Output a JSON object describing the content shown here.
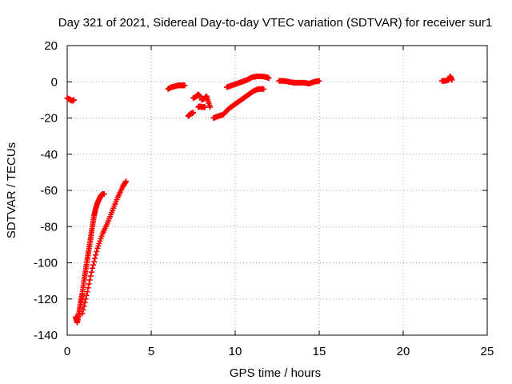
{
  "chart_data": {
    "type": "scatter",
    "title": "Day 321 of 2021, Sidereal Day-to-day VTEC variation (SDTVAR) for receiver sur1",
    "xlabel": "GPS time / hours",
    "ylabel": "SDTVAR / TECUs",
    "xlim": [
      0,
      25
    ],
    "ylim": [
      -140,
      20
    ],
    "xticks": [
      0,
      5,
      10,
      15,
      20,
      25
    ],
    "yticks": [
      -140,
      -120,
      -100,
      -80,
      -60,
      -40,
      -20,
      0,
      20
    ],
    "grid": true,
    "marker": "+",
    "color": "#ff0000",
    "segments": [
      {
        "x": [
          0.0,
          0.1,
          0.2,
          0.3,
          0.4
        ],
        "y": [
          -9,
          -9.5,
          -10,
          -10.5,
          -10
        ]
      },
      {
        "x": [
          0.5,
          0.6,
          0.7,
          0.8,
          0.9,
          1.0,
          1.1,
          1.2,
          1.3,
          1.4,
          1.5,
          1.6,
          1.7,
          1.8,
          1.9,
          2.0,
          2.1,
          2.2
        ],
        "y": [
          -130,
          -133,
          -128,
          -122,
          -117,
          -110,
          -104,
          -98,
          -92,
          -86,
          -80,
          -74,
          -70,
          -67,
          -65,
          -63,
          -62,
          -62
        ]
      },
      {
        "x": [
          0.9,
          1.2,
          1.5,
          1.8,
          2.1,
          2.4,
          2.7,
          3.0,
          3.3,
          3.5
        ],
        "y": [
          -128,
          -116,
          -103,
          -92,
          -84,
          -78,
          -71,
          -64,
          -58,
          -55
        ]
      },
      {
        "x": [
          6.0,
          6.2,
          6.4,
          6.6,
          6.8,
          7.0
        ],
        "y": [
          -4,
          -3,
          -2.5,
          -2,
          -2,
          -2
        ]
      },
      {
        "x": [
          7.2,
          7.3,
          7.4,
          7.5
        ],
        "y": [
          -19,
          -18,
          -17.5,
          -17
        ]
      },
      {
        "x": [
          7.5,
          7.7,
          7.8,
          7.9
        ],
        "y": [
          -9,
          -8,
          -7,
          -8
        ]
      },
      {
        "x": [
          7.8,
          7.9,
          8.0,
          8.1,
          8.2
        ],
        "y": [
          -14,
          -13.5,
          -14,
          -14,
          -14
        ]
      },
      {
        "x": [
          8.0,
          8.2,
          8.3,
          8.5
        ],
        "y": [
          -10,
          -9,
          -8,
          -14
        ]
      },
      {
        "x": [
          8.7,
          9.0,
          9.3,
          9.6,
          9.9,
          10.2,
          10.5,
          10.8,
          11.1,
          11.4,
          11.7
        ],
        "y": [
          -20,
          -19,
          -18,
          -15,
          -13,
          -11,
          -9,
          -7,
          -5,
          -4,
          -4
        ]
      },
      {
        "x": [
          9.5,
          9.8,
          10.1,
          10.4,
          10.7,
          11.0,
          11.3,
          11.6,
          11.9,
          12.0
        ],
        "y": [
          -3,
          -2,
          -1,
          0,
          1,
          2.5,
          3,
          3,
          2.5,
          2
        ]
      },
      {
        "x": [
          12.6,
          12.9,
          13.2,
          13.5,
          13.8,
          14.1,
          14.4,
          14.7,
          15.0
        ],
        "y": [
          0.5,
          0.5,
          0,
          -0.5,
          -0.5,
          -0.5,
          -1,
          0,
          0.5
        ]
      },
      {
        "x": [
          22.3,
          22.5,
          22.7,
          22.8,
          22.9
        ],
        "y": [
          0.5,
          0.5,
          1,
          3,
          1
        ]
      }
    ]
  }
}
